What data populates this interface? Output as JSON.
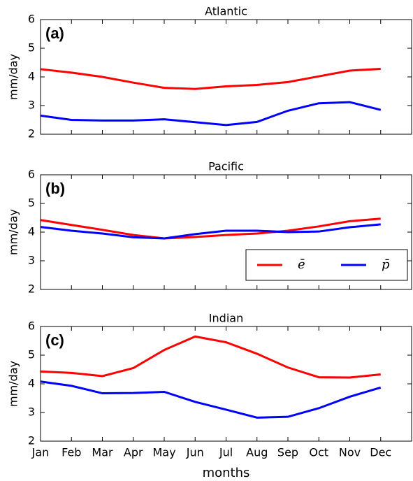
{
  "chart_data": [
    {
      "type": "line",
      "title": "Atlantic",
      "panel_label": "(a)",
      "ylabel": "mm/day",
      "ylim": [
        2,
        6
      ],
      "yticks": [
        2,
        3,
        4,
        5,
        6
      ],
      "series": [
        {
          "color": "#ff0000",
          "values": [
            4.27,
            4.15,
            4.0,
            3.8,
            3.62,
            3.58,
            3.67,
            3.72,
            3.82,
            4.02,
            4.22,
            4.28
          ]
        },
        {
          "color": "#0000ff",
          "values": [
            2.65,
            2.5,
            2.48,
            2.48,
            2.52,
            2.42,
            2.32,
            2.43,
            2.82,
            3.08,
            3.12,
            2.85
          ]
        }
      ]
    },
    {
      "type": "line",
      "title": "Pacific",
      "panel_label": "(b)",
      "ylabel": "mm/day",
      "ylim": [
        2,
        6
      ],
      "yticks": [
        2,
        3,
        4,
        5,
        6
      ],
      "series": [
        {
          "name": "ē",
          "color": "#ff0000",
          "values": [
            4.42,
            4.25,
            4.08,
            3.9,
            3.78,
            3.83,
            3.9,
            3.95,
            4.05,
            4.2,
            4.38,
            4.47
          ]
        },
        {
          "name": "p̄",
          "color": "#0000ff",
          "values": [
            4.18,
            4.05,
            3.95,
            3.82,
            3.78,
            3.93,
            4.05,
            4.05,
            4.0,
            4.02,
            4.17,
            4.27
          ]
        }
      ]
    },
    {
      "type": "line",
      "title": "Indian",
      "panel_label": "(c)",
      "ylabel": "mm/day",
      "xlabel": "months",
      "categories": [
        "Jan",
        "Feb",
        "Mar",
        "Apr",
        "May",
        "Jun",
        "Jul",
        "Aug",
        "Sep",
        "Oct",
        "Nov",
        "Dec"
      ],
      "ylim": [
        2,
        6
      ],
      "yticks": [
        2,
        3,
        4,
        5,
        6
      ],
      "series": [
        {
          "color": "#ff0000",
          "values": [
            4.43,
            4.38,
            4.27,
            4.55,
            5.18,
            5.65,
            5.45,
            5.05,
            4.57,
            4.23,
            4.22,
            4.33
          ]
        },
        {
          "color": "#0000ff",
          "values": [
            4.08,
            3.93,
            3.67,
            3.68,
            3.72,
            3.37,
            3.1,
            2.82,
            2.85,
            3.15,
            3.55,
            3.87
          ]
        }
      ]
    }
  ]
}
